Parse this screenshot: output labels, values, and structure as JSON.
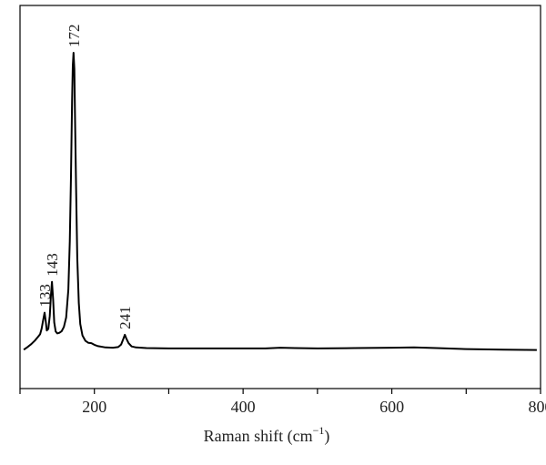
{
  "chart_data": {
    "type": "line",
    "title": "",
    "xlabel_main": "Raman shift (cm",
    "xlabel_sup": "−1",
    "xlabel_close": ")",
    "ylabel": "",
    "xlim": [
      100,
      800
    ],
    "ylim": [
      0,
      100
    ],
    "xticks": [
      200,
      400,
      600,
      800
    ],
    "xtick_labels": [
      "200",
      "400",
      "600",
      "800"
    ],
    "minor_xticks": [
      300,
      500,
      700
    ],
    "grid": false,
    "legend": "none",
    "line_color": "#000000",
    "peaks": [
      {
        "x": 133,
        "label": "133"
      },
      {
        "x": 143,
        "label": "143"
      },
      {
        "x": 172,
        "label": "172"
      },
      {
        "x": 241,
        "label": "241"
      }
    ],
    "series": [
      {
        "values": [
          [
            105,
            1.6
          ],
          [
            110,
            2.4
          ],
          [
            115,
            3.3
          ],
          [
            120,
            4.4
          ],
          [
            124,
            5.5
          ],
          [
            127,
            6.4
          ],
          [
            129,
            8.0
          ],
          [
            131,
            10.5
          ],
          [
            133,
            13.0
          ],
          [
            134.5,
            10.5
          ],
          [
            136,
            7.5
          ],
          [
            138,
            8.0
          ],
          [
            140,
            12.0
          ],
          [
            141.5,
            18.0
          ],
          [
            143,
            22.5
          ],
          [
            144.5,
            17.0
          ],
          [
            146,
            10.0
          ],
          [
            148,
            7.2
          ],
          [
            150,
            6.6
          ],
          [
            153,
            6.8
          ],
          [
            156,
            7.3
          ],
          [
            159,
            8.6
          ],
          [
            162,
            11.5
          ],
          [
            165,
            20.0
          ],
          [
            167,
            35.0
          ],
          [
            168.5,
            55.0
          ],
          [
            170,
            78.0
          ],
          [
            171,
            89.0
          ],
          [
            172,
            93.0
          ],
          [
            173,
            88.0
          ],
          [
            174,
            72.0
          ],
          [
            175.5,
            50.0
          ],
          [
            177,
            30.0
          ],
          [
            179,
            16.0
          ],
          [
            181,
            9.5
          ],
          [
            184,
            6.0
          ],
          [
            188,
            4.3
          ],
          [
            192,
            3.7
          ],
          [
            196,
            3.6
          ],
          [
            200,
            3.1
          ],
          [
            205,
            2.7
          ],
          [
            215,
            2.3
          ],
          [
            225,
            2.2
          ],
          [
            232,
            2.4
          ],
          [
            236,
            3.2
          ],
          [
            239,
            5.0
          ],
          [
            241,
            6.2
          ],
          [
            243,
            5.0
          ],
          [
            246,
            3.6
          ],
          [
            250,
            2.6
          ],
          [
            256,
            2.3
          ],
          [
            270,
            2.1
          ],
          [
            300,
            2.0
          ],
          [
            350,
            2.0
          ],
          [
            400,
            2.0
          ],
          [
            430,
            2.0
          ],
          [
            450,
            2.2
          ],
          [
            470,
            2.1
          ],
          [
            500,
            2.0
          ],
          [
            550,
            2.1
          ],
          [
            600,
            2.2
          ],
          [
            630,
            2.3
          ],
          [
            660,
            2.1
          ],
          [
            700,
            1.8
          ],
          [
            750,
            1.6
          ],
          [
            795,
            1.5
          ]
        ]
      }
    ]
  }
}
